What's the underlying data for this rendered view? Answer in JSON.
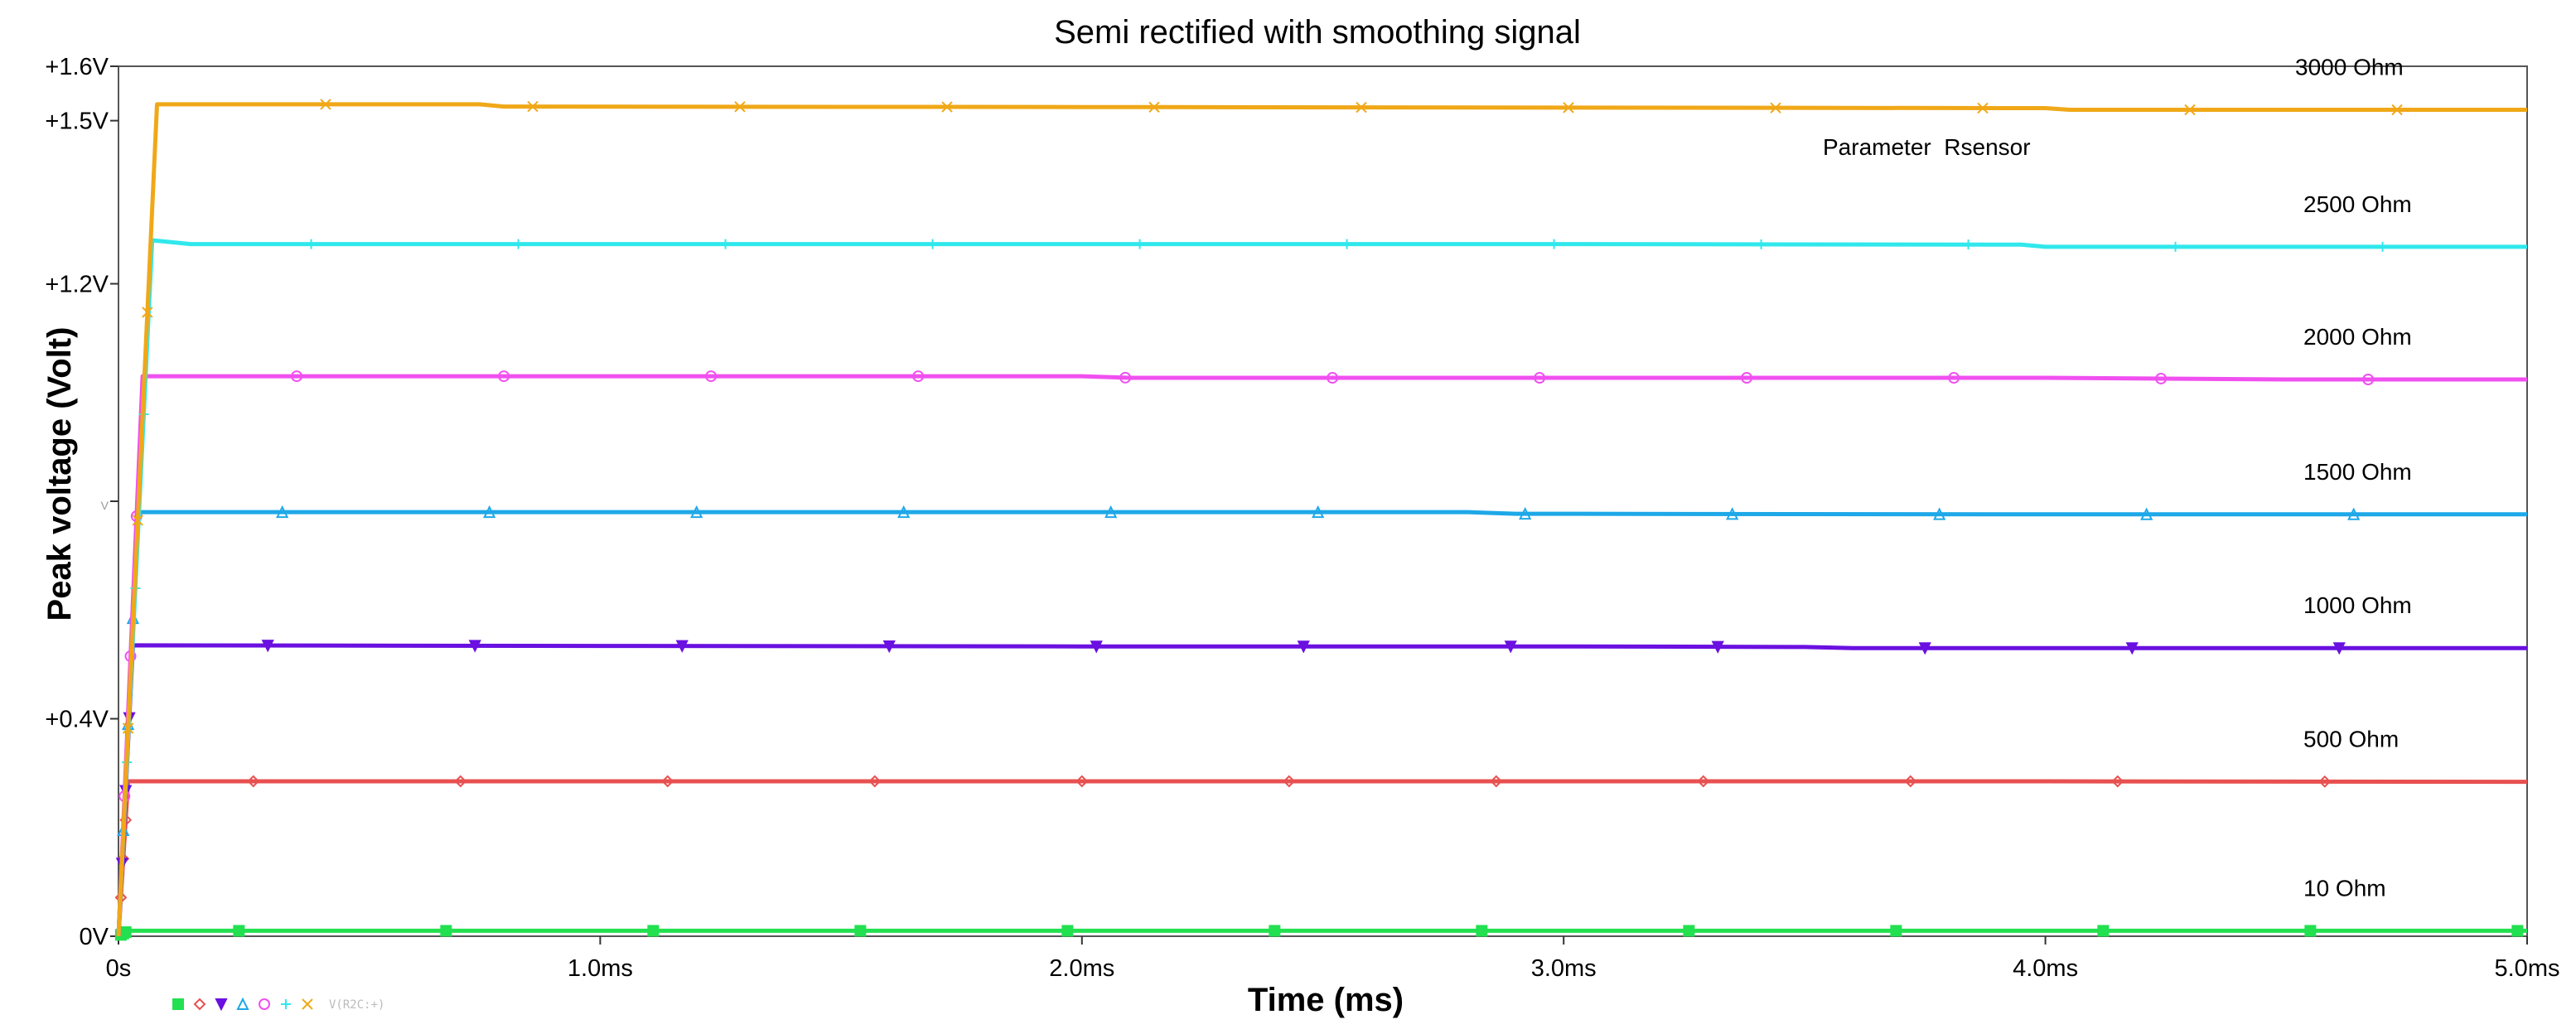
{
  "chart_data": {
    "type": "line",
    "title": "Semi rectified with smoothing signal",
    "xlabel": "Time (ms)",
    "ylabel": "Peak voltage (Volt)",
    "xlim": [
      0,
      5.0
    ],
    "ylim": [
      0,
      1.6
    ],
    "x_ticks": [
      {
        "value": 0,
        "label": "0s"
      },
      {
        "value": 1.0,
        "label": "1.0ms"
      },
      {
        "value": 2.0,
        "label": "2.0ms"
      },
      {
        "value": 3.0,
        "label": "3.0ms"
      },
      {
        "value": 4.0,
        "label": "4.0ms"
      },
      {
        "value": 5.0,
        "label": "5.0ms"
      }
    ],
    "y_ticks": [
      {
        "value": 0,
        "label": "0V"
      },
      {
        "value": 0.4,
        "label": "+0.4V"
      },
      {
        "value": 0.8,
        "label": "V",
        "faint": true
      },
      {
        "value": 1.2,
        "label": "+1.2V"
      },
      {
        "value": 1.5,
        "label": "+1.5V"
      },
      {
        "value": 1.6,
        "label": "+1.6V"
      }
    ],
    "annotation": "Parameter  Rsensor",
    "legend_trace": "V(R2C:+)",
    "series": [
      {
        "name": "10 Ohm",
        "color": "#22e050",
        "marker": "square",
        "rise_end": 0.02,
        "points": [
          [
            0.0,
            0.01
          ],
          [
            0.5,
            0.01
          ],
          [
            1.0,
            0.01
          ],
          [
            2.0,
            0.01
          ],
          [
            3.0,
            0.01
          ],
          [
            4.0,
            0.01
          ],
          [
            5.0,
            0.01
          ]
        ]
      },
      {
        "name": "500 Ohm",
        "color": "#e85050",
        "marker": "diamond",
        "rise_end": 0.02,
        "points": [
          [
            0.0,
            0.285
          ],
          [
            0.5,
            0.285
          ],
          [
            1.0,
            0.285
          ],
          [
            2.0,
            0.285
          ],
          [
            3.0,
            0.285
          ],
          [
            4.0,
            0.285
          ],
          [
            5.0,
            0.284
          ]
        ]
      },
      {
        "name": "1000 Ohm",
        "color": "#6a10e0",
        "marker": "triangle-down",
        "rise_end": 0.03,
        "points": [
          [
            0.0,
            0.535
          ],
          [
            1.0,
            0.534
          ],
          [
            2.0,
            0.533
          ],
          [
            3.0,
            0.533
          ],
          [
            3.5,
            0.532
          ],
          [
            3.6,
            0.53
          ],
          [
            4.0,
            0.53
          ],
          [
            5.0,
            0.53
          ]
        ]
      },
      {
        "name": "1500 Ohm",
        "color": "#1ea8e8",
        "marker": "triangle-up",
        "rise_end": 0.04,
        "points": [
          [
            0.0,
            0.78
          ],
          [
            1.0,
            0.78
          ],
          [
            2.0,
            0.78
          ],
          [
            2.8,
            0.78
          ],
          [
            2.9,
            0.777
          ],
          [
            4.0,
            0.776
          ],
          [
            5.0,
            0.776
          ]
        ]
      },
      {
        "name": "2000 Ohm",
        "color": "#f050f0",
        "marker": "circle",
        "rise_end": 0.05,
        "points": [
          [
            0.0,
            1.03
          ],
          [
            1.0,
            1.03
          ],
          [
            2.0,
            1.03
          ],
          [
            2.1,
            1.027
          ],
          [
            3.0,
            1.027
          ],
          [
            4.0,
            1.027
          ],
          [
            4.5,
            1.024
          ],
          [
            5.0,
            1.024
          ]
        ]
      },
      {
        "name": "2500 Ohm",
        "color": "#30e8ec",
        "marker": "plus",
        "rise_end": 0.07,
        "points": [
          [
            0.0,
            1.28
          ],
          [
            0.15,
            1.273
          ],
          [
            1.0,
            1.273
          ],
          [
            2.0,
            1.273
          ],
          [
            3.0,
            1.273
          ],
          [
            3.95,
            1.272
          ],
          [
            4.0,
            1.268
          ],
          [
            5.0,
            1.268
          ]
        ]
      },
      {
        "name": "3000 Ohm",
        "color": "#f0a818",
        "marker": "x",
        "rise_end": 0.08,
        "points": [
          [
            0.0,
            1.53
          ],
          [
            0.75,
            1.53
          ],
          [
            0.8,
            1.526
          ],
          [
            2.0,
            1.525
          ],
          [
            3.0,
            1.524
          ],
          [
            4.0,
            1.523
          ],
          [
            4.05,
            1.52
          ],
          [
            5.0,
            1.52
          ]
        ]
      }
    ]
  }
}
